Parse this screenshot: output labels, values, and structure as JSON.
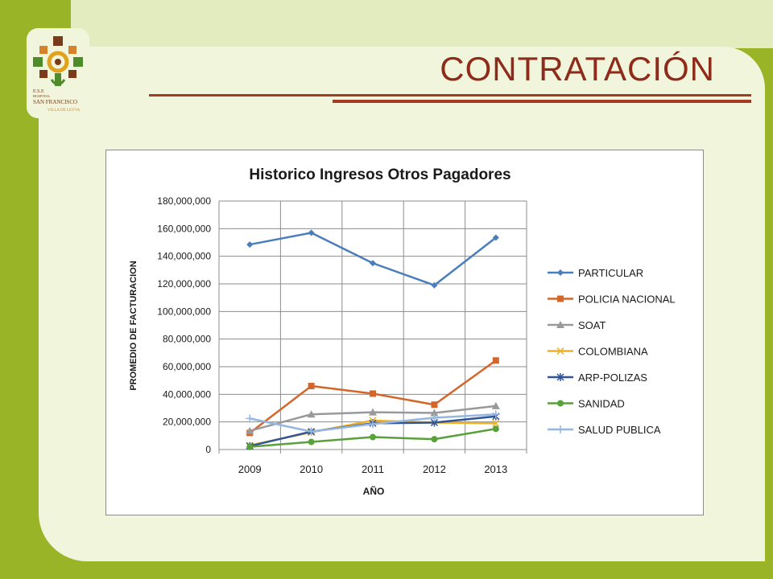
{
  "slide": {
    "title": "CONTRATACIÓN",
    "logo": {
      "line1": "E.S.E",
      "line2": "HOSPITAL",
      "line3": "SAN FRANCISCO",
      "line4": "VILLA DE LEYVA"
    },
    "colors": {
      "background_green": "#9ab428",
      "panel": "#f1f5dc",
      "title": "#8e2b1b",
      "rule": "#a43b24"
    }
  },
  "chart_data": {
    "type": "line",
    "title": "Historico Ingresos Otros Pagadores",
    "xlabel": "AÑO",
    "ylabel": "PROMEDIO DE FACTURACION",
    "categories": [
      "2009",
      "2010",
      "2011",
      "2012",
      "2013"
    ],
    "ylim": [
      0,
      180000000
    ],
    "yticks": [
      "0",
      "20,000,000",
      "40,000,000",
      "60,000,000",
      "80,000,000",
      "100,000,000",
      "120,000,000",
      "140,000,000",
      "160,000,000",
      "180,000,000"
    ],
    "grid": true,
    "legend_position": "right",
    "series": [
      {
        "name": "PARTICULAR",
        "color": "#4a7ebb",
        "marker": "diamond",
        "values": [
          148500000,
          157000000,
          135000000,
          119000000,
          153500000
        ]
      },
      {
        "name": "POLICIA NACIONAL",
        "color": "#d4662a",
        "marker": "square",
        "values": [
          12000000,
          46000000,
          40500000,
          32500000,
          64500000
        ]
      },
      {
        "name": "SOAT",
        "color": "#999999",
        "marker": "triangle",
        "values": [
          13500000,
          25500000,
          27000000,
          26500000,
          31500000
        ]
      },
      {
        "name": "COLOMBIANA",
        "color": "#f0b020",
        "marker": "x",
        "values": [
          3000000,
          12500000,
          21000000,
          19500000,
          19000000
        ]
      },
      {
        "name": "ARP-POLIZAS",
        "color": "#2f5597",
        "marker": "star",
        "values": [
          2500000,
          13000000,
          19000000,
          19500000,
          24000000
        ]
      },
      {
        "name": "SANIDAD",
        "color": "#5aa03c",
        "marker": "circle",
        "values": [
          2000000,
          5500000,
          9000000,
          7500000,
          15000000
        ]
      },
      {
        "name": "SALUD PUBLICA",
        "color": "#94b6e0",
        "marker": "plus",
        "values": [
          22500000,
          13000000,
          18500000,
          23000000,
          25500000
        ]
      }
    ]
  }
}
